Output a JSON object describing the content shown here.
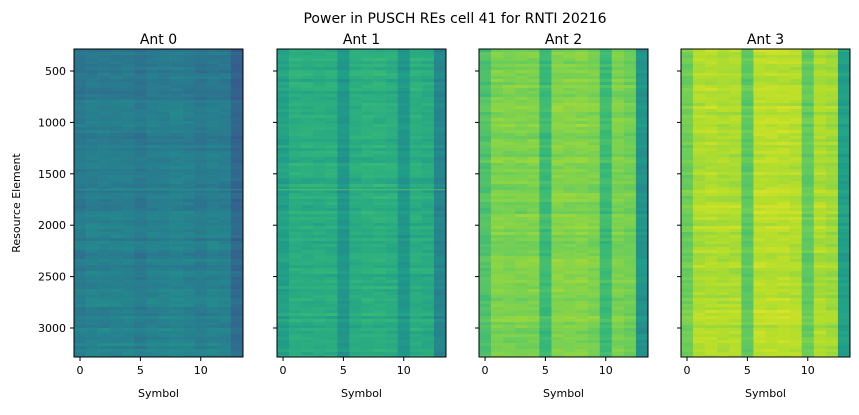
{
  "chart_data": {
    "type": "heatmap",
    "title": "Power in PUSCH REs cell 41 for RNTI 20216",
    "colormap": "viridis",
    "xlabel": "Symbol",
    "ylabel": "Resource Element",
    "xlim": [
      -0.5,
      13.5
    ],
    "ylim": [
      3282,
      286
    ],
    "xticks": [
      "0",
      "5",
      "10"
    ],
    "yticks": [
      "500",
      "1000",
      "1500",
      "2000",
      "2500",
      "3000"
    ],
    "shared_y": true,
    "panels": [
      {
        "title": "Ant 0",
        "symbol_level": [
          0.4,
          0.42,
          0.42,
          0.42,
          0.42,
          0.39,
          0.42,
          0.42,
          0.43,
          0.42,
          0.4,
          0.42,
          0.41,
          0.32
        ],
        "highlight_re": 1650
      },
      {
        "title": "Ant 1",
        "symbol_level": [
          0.57,
          0.62,
          0.62,
          0.62,
          0.62,
          0.53,
          0.62,
          0.63,
          0.63,
          0.62,
          0.53,
          0.62,
          0.61,
          0.46
        ],
        "highlight_re": 1650
      },
      {
        "title": "Ant 2",
        "symbol_level": [
          0.72,
          0.8,
          0.8,
          0.8,
          0.8,
          0.68,
          0.81,
          0.81,
          0.81,
          0.8,
          0.68,
          0.8,
          0.78,
          0.52
        ]
      },
      {
        "title": "Ant 3",
        "symbol_level": [
          0.78,
          0.88,
          0.89,
          0.88,
          0.88,
          0.75,
          0.9,
          0.9,
          0.9,
          0.89,
          0.76,
          0.88,
          0.86,
          0.57
        ]
      }
    ]
  }
}
